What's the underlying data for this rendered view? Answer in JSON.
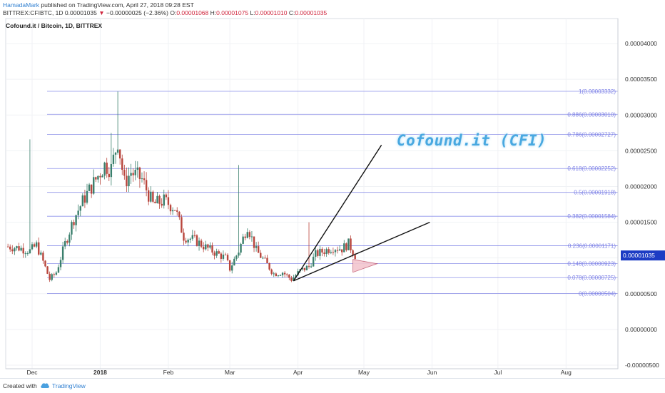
{
  "header": {
    "author": "HamadaMark",
    "published": "published on TradingView.com, April 27, 2018 09:28 EST",
    "symbol": "BITTREX:CFIBTC, 1D",
    "last": "0.00001035",
    "change": "−0.00000025 (−2.36%)",
    "open_label": "O:",
    "open": "0.00001068",
    "high_label": "H:",
    "high": "0.00001075",
    "low_label": "L:",
    "low": "0.00001010",
    "close_label": "C:",
    "close": "0.00001035"
  },
  "chart_title": "Cofound.it / Bitcoin, 1D, BITTREX",
  "annotation_title": "Cofound.it (CFI)",
  "footer": {
    "created_with": "Created with",
    "brand": "TradingView"
  },
  "colors": {
    "up": "#3a7f6c",
    "down": "#b8453c",
    "fib": "#7b7fe6",
    "price_tag": "#1c3cc4",
    "title": "#48a8e0"
  },
  "chart_data": {
    "type": "candlestick",
    "x_ticks": [
      "Dec",
      "2018",
      "Feb",
      "Mar",
      "Apr",
      "May",
      "Jun",
      "Jul",
      "Aug"
    ],
    "y_ticks": [
      "0.00004000",
      "0.00003500",
      "0.00003000",
      "0.00002500",
      "0.00002000",
      "0.00001500",
      "0.00001000",
      "0.00000500",
      "0.00000000",
      "-0.00000500"
    ],
    "ylim": [
      -5.5e-06,
      4.35e-05
    ],
    "last_price": "0.00001035",
    "fib_levels": [
      {
        "label": "1(0.00003332)",
        "value": 3.332e-05
      },
      {
        "label": "0.886(0.00003010)",
        "value": 3.01e-05
      },
      {
        "label": "0.786(0.00002727)",
        "value": 2.727e-05
      },
      {
        "label": "0.618(0.00002252)",
        "value": 2.252e-05
      },
      {
        "label": "0.5(0.00001918)",
        "value": 1.918e-05
      },
      {
        "label": "0.382(0.00001584)",
        "value": 1.584e-05
      },
      {
        "label": "0.236(0.00001171)",
        "value": 1.171e-05
      },
      {
        "label": "0.148(0.00000923)",
        "value": 9.23e-06
      },
      {
        "label": "0.078(0.00000725)",
        "value": 7.25e-06
      },
      {
        "label": "0(0.00000504)",
        "value": 5.04e-06
      }
    ],
    "price_path": [
      [
        "2017-11-20",
        1.16e-05
      ],
      [
        "2017-11-25",
        1.14e-05
      ],
      [
        "2017-11-30",
        1.1e-05
      ],
      [
        "2017-12-03",
        1.18e-05
      ],
      [
        "2017-12-06",
        9.5e-06
      ],
      [
        "2017-12-09",
        7e-06
      ],
      [
        "2017-12-12",
        8e-06
      ],
      [
        "2017-12-16",
        1.2e-05
      ],
      [
        "2017-12-20",
        1.55e-05
      ],
      [
        "2017-12-25",
        1.85e-05
      ],
      [
        "2017-12-30",
        2.1e-05
      ],
      [
        "2018-01-03",
        2.3e-05
      ],
      [
        "2018-01-06",
        2.25e-05
      ],
      [
        "2018-01-09",
        2.65e-05
      ],
      [
        "2018-01-12",
        2.05e-05
      ],
      [
        "2018-01-15",
        2.2e-05
      ],
      [
        "2018-01-20",
        2.1e-05
      ],
      [
        "2018-01-25",
        1.75e-05
      ],
      [
        "2018-01-30",
        1.8e-05
      ],
      [
        "2018-02-04",
        1.7e-05
      ],
      [
        "2018-02-08",
        1.3e-05
      ],
      [
        "2018-02-13",
        1.25e-05
      ],
      [
        "2018-02-18",
        1.15e-05
      ],
      [
        "2018-02-22",
        1.08e-05
      ],
      [
        "2018-02-27",
        1e-05
      ],
      [
        "2018-03-01",
        8.5e-06
      ],
      [
        "2018-03-05",
        1.1e-05
      ],
      [
        "2018-03-09",
        1.45e-05
      ],
      [
        "2018-03-13",
        1.1e-05
      ],
      [
        "2018-03-17",
        9.5e-06
      ],
      [
        "2018-03-21",
        7.8e-06
      ],
      [
        "2018-03-25",
        8e-06
      ],
      [
        "2018-03-29",
        7e-06
      ],
      [
        "2018-04-02",
        8.2e-06
      ],
      [
        "2018-04-06",
        8.8e-06
      ],
      [
        "2018-04-09",
        1.05e-05
      ],
      [
        "2018-04-13",
        1.1e-05
      ],
      [
        "2018-04-17",
        1.15e-05
      ],
      [
        "2018-04-21",
        1.13e-05
      ],
      [
        "2018-04-24",
        1.2e-05
      ],
      [
        "2018-04-27",
        1.035e-05
      ]
    ],
    "wick_highs": [
      [
        "2017-11-30",
        2.66e-05
      ],
      [
        "2018-01-06",
        2.75e-05
      ],
      [
        "2018-01-09",
        3.33e-05
      ],
      [
        "2018-03-05",
        2.3e-05
      ],
      [
        "2018-04-06",
        1.5e-05
      ]
    ],
    "trendlines": [
      {
        "from": [
          "2018-03-30",
          6.8e-06
        ],
        "to": [
          "2018-05-09",
          2.58e-05
        ]
      },
      {
        "from": [
          "2018-03-30",
          6.8e-06
        ],
        "to": [
          "2018-05-31",
          1.5e-05
        ]
      }
    ]
  }
}
